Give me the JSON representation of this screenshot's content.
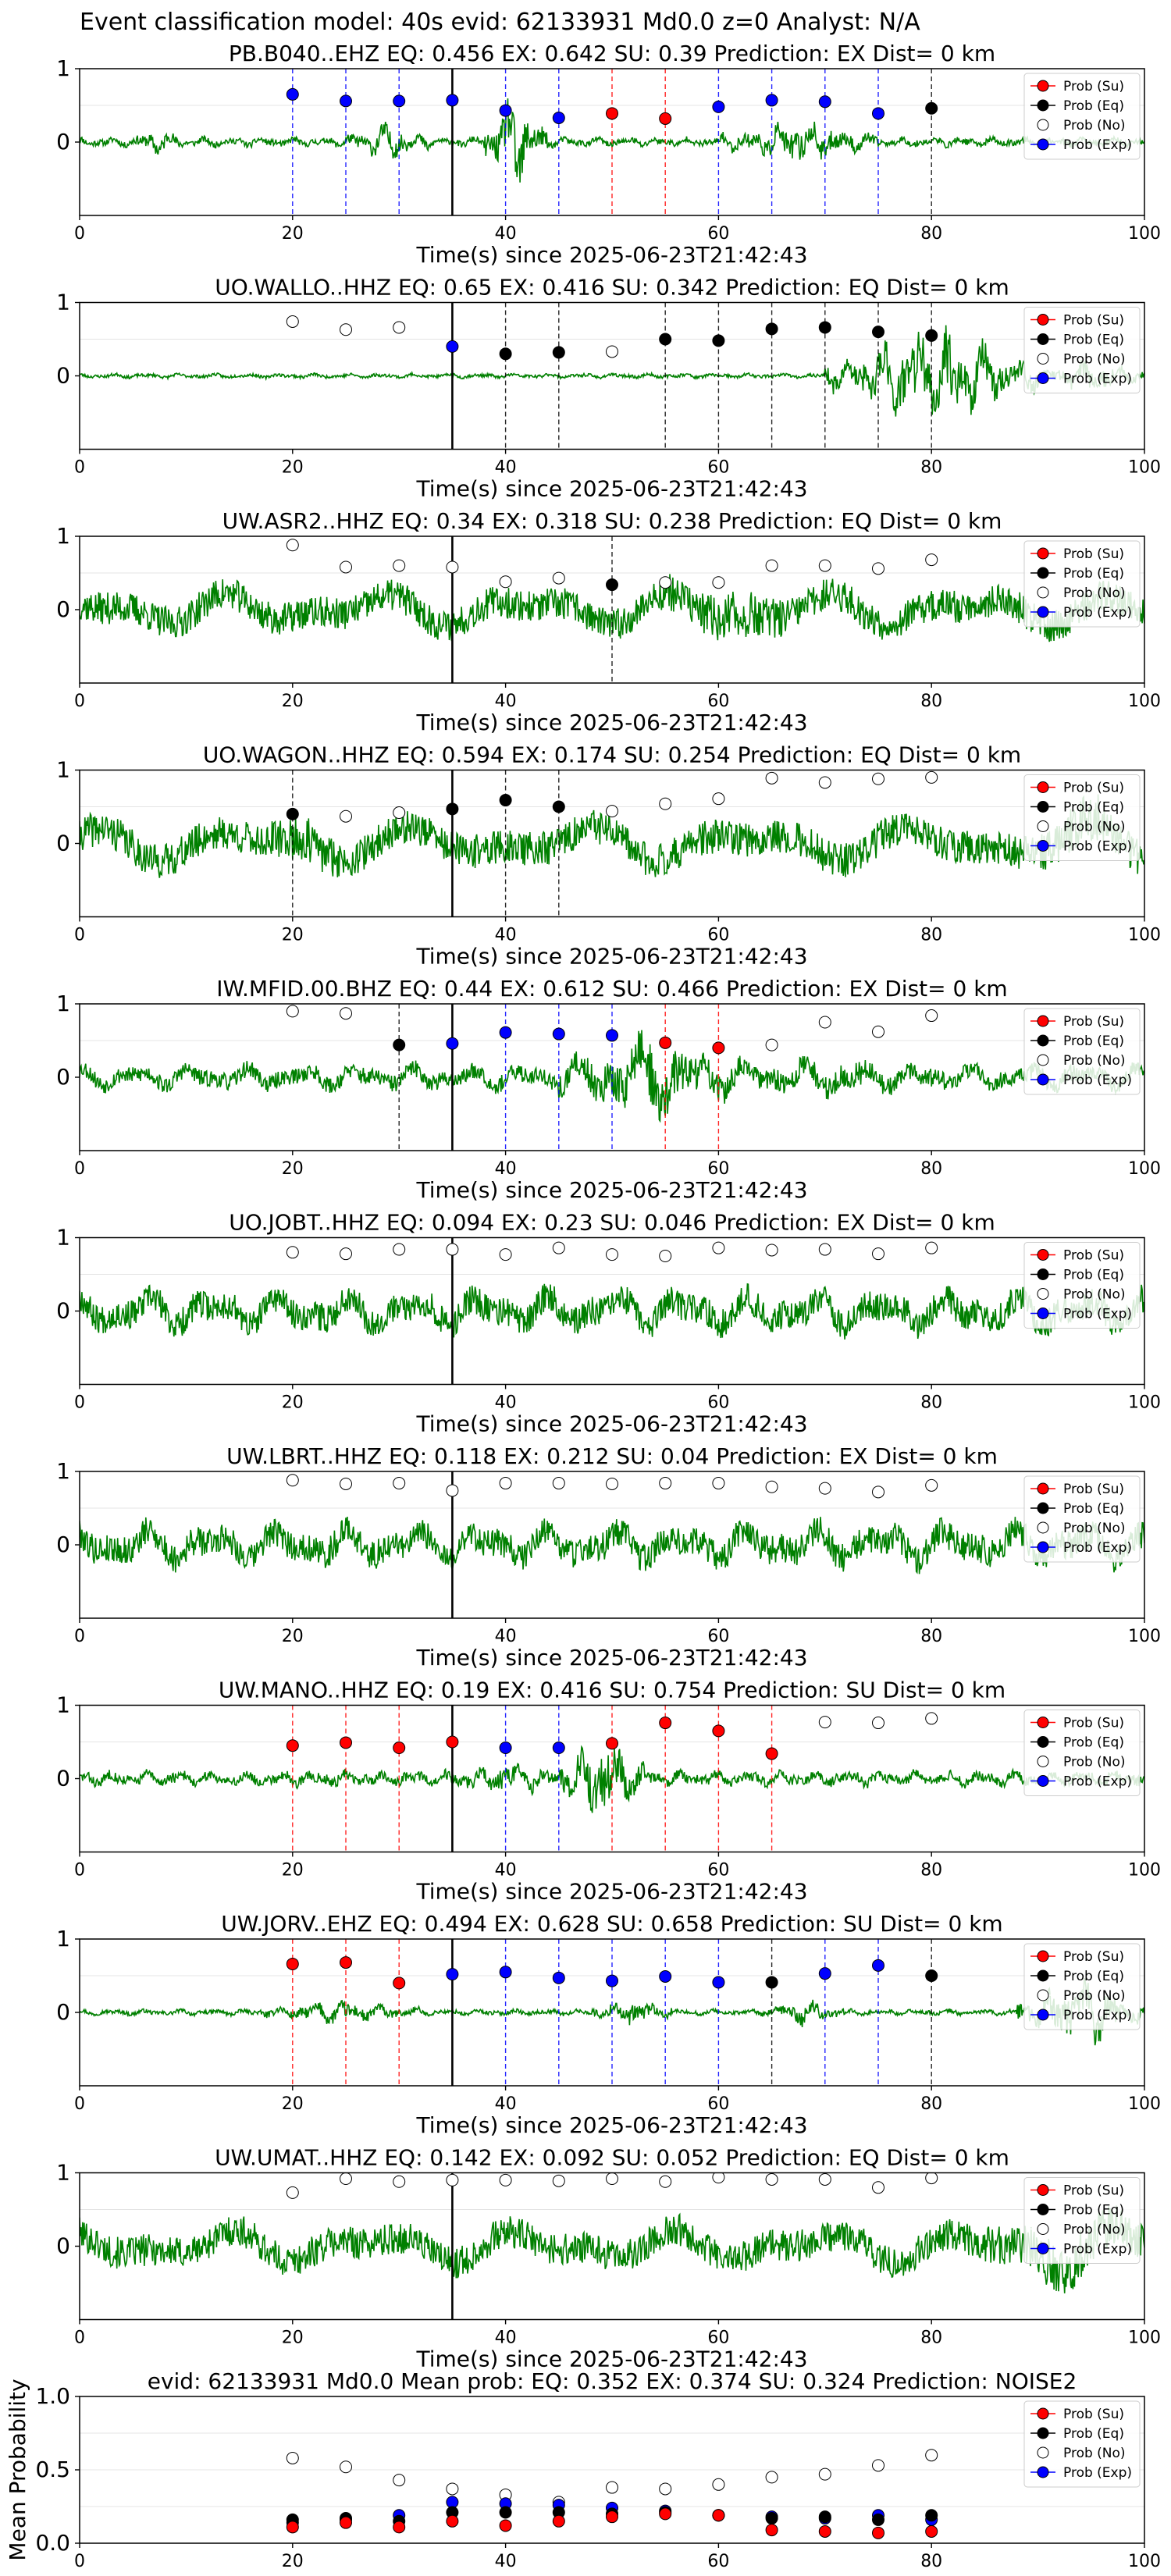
{
  "suptitle": "Event classification model: 40s evid: 62133931 Md0.0 z=0 Analyst: N/A",
  "legend_labels": [
    "Prob (Su)",
    "Prob (Eq)",
    "Prob (No)",
    "Prob (Exp)"
  ],
  "colors": {
    "su": "#ff0000",
    "eq": "#000000",
    "no": "#ffffff",
    "exp": "#0000ff",
    "wave": "#008000"
  },
  "chart_data": [
    {
      "type": "scatter",
      "title": "PB.B040..EHZ   EQ: 0.456  EX: 0.642  SU: 0.39   Prediction: EX    Dist= 0 km",
      "xlabel": "Time(s) since 2025-06-23T21:42:43",
      "ylabel": "",
      "xlim": [
        0,
        100
      ],
      "ylim": [
        -1,
        1
      ],
      "x_ticks": [
        0,
        20,
        40,
        60,
        80,
        100
      ],
      "y_ticks": [
        0,
        1
      ],
      "pick_time": 35,
      "waveform": {
        "amp": 0.08,
        "freq": 2.2,
        "seed": 11,
        "bursts": [
          [
            38,
            44,
            0.75
          ],
          [
            25,
            33,
            0.22
          ],
          [
            60,
            75,
            0.28
          ],
          [
            5,
            10,
            0.15
          ]
        ]
      },
      "x": [
        20,
        25,
        30,
        35,
        40,
        45,
        50,
        55,
        60,
        65,
        70,
        75,
        80
      ],
      "class": [
        "exp",
        "exp",
        "exp",
        "exp",
        "exp",
        "exp",
        "su",
        "su",
        "exp",
        "exp",
        "exp",
        "exp",
        "eq"
      ],
      "prob": [
        0.65,
        0.56,
        0.56,
        0.57,
        0.43,
        0.33,
        0.39,
        0.32,
        0.48,
        0.57,
        0.55,
        0.39,
        0.46
      ]
    },
    {
      "type": "scatter",
      "title": "UO.WALLO..HHZ   EQ: 0.65  EX: 0.416  SU: 0.342   Prediction: EQ    Dist= 0 km",
      "xlabel": "Time(s) since 2025-06-23T21:42:43",
      "ylabel": "",
      "xlim": [
        0,
        100
      ],
      "ylim": [
        -1,
        1
      ],
      "x_ticks": [
        0,
        20,
        40,
        60,
        80,
        100
      ],
      "y_ticks": [
        0,
        1
      ],
      "pick_time": 35,
      "waveform": {
        "amp": 0.04,
        "freq": 2.0,
        "seed": 23,
        "bursts": [
          [
            70,
            90,
            0.9
          ],
          [
            90,
            100,
            0.25
          ]
        ]
      },
      "x": [
        20,
        25,
        30,
        35,
        40,
        45,
        50,
        55,
        60,
        65,
        70,
        75,
        80
      ],
      "class": [
        "no",
        "no",
        "no",
        "exp",
        "eq",
        "eq",
        "no",
        "eq",
        "eq",
        "eq",
        "eq",
        "eq",
        "eq"
      ],
      "prob": [
        0.74,
        0.63,
        0.66,
        0.4,
        0.3,
        0.32,
        0.33,
        0.5,
        0.48,
        0.64,
        0.66,
        0.6,
        0.55
      ]
    },
    {
      "type": "scatter",
      "title": "UW.ASR2..HHZ   EQ: 0.34  EX: 0.318  SU: 0.238   Prediction: EQ    Dist= 0 km",
      "xlabel": "Time(s) since 2025-06-23T21:42:43",
      "ylabel": "",
      "xlim": [
        0,
        100
      ],
      "ylim": [
        -1,
        1
      ],
      "x_ticks": [
        0,
        20,
        40,
        60,
        80,
        100
      ],
      "y_ticks": [
        0,
        1
      ],
      "pick_time": 35,
      "waveform": {
        "amp": 0.42,
        "freq": 0.45,
        "seed": 37,
        "bursts": [
          [
            55,
            68,
            0.25
          ]
        ]
      },
      "x": [
        20,
        25,
        30,
        35,
        40,
        45,
        50,
        55,
        60,
        65,
        70,
        75,
        80
      ],
      "class": [
        "no",
        "no",
        "no",
        "no",
        "no",
        "no",
        "eq",
        "no",
        "no",
        "no",
        "no",
        "no",
        "no"
      ],
      "prob": [
        0.88,
        0.58,
        0.6,
        0.58,
        0.38,
        0.43,
        0.34,
        0.37,
        0.37,
        0.6,
        0.6,
        0.56,
        0.68
      ]
    },
    {
      "type": "scatter",
      "title": "UO.WAGON..HHZ   EQ: 0.594  EX: 0.174  SU: 0.254   Prediction: EQ    Dist= 0 km",
      "xlabel": "Time(s) since 2025-06-23T21:42:43",
      "ylabel": "",
      "xlim": [
        0,
        100
      ],
      "ylim": [
        -1,
        1
      ],
      "x_ticks": [
        0,
        20,
        40,
        60,
        80,
        100
      ],
      "y_ticks": [
        0,
        1
      ],
      "pick_time": 35,
      "waveform": {
        "amp": 0.45,
        "freq": 0.4,
        "seed": 41,
        "bursts": [
          [
            18,
            25,
            0.2
          ],
          [
            90,
            100,
            0.25
          ]
        ]
      },
      "x": [
        20,
        25,
        30,
        35,
        40,
        45,
        50,
        55,
        60,
        65,
        70,
        75,
        80
      ],
      "class": [
        "eq",
        "no",
        "no",
        "eq",
        "eq",
        "eq",
        "no",
        "no",
        "no",
        "no",
        "no",
        "no",
        "no"
      ],
      "prob": [
        0.4,
        0.37,
        0.42,
        0.47,
        0.59,
        0.5,
        0.44,
        0.54,
        0.61,
        0.89,
        0.83,
        0.88,
        0.9
      ]
    },
    {
      "type": "scatter",
      "title": "IW.MFID.00.BHZ   EQ: 0.44  EX: 0.612  SU: 0.466   Prediction: EX    Dist= 0 km",
      "xlabel": "Time(s) since 2025-06-23T21:42:43",
      "ylabel": "",
      "xlim": [
        0,
        100
      ],
      "ylim": [
        -1,
        1
      ],
      "x_ticks": [
        0,
        20,
        40,
        60,
        80,
        100
      ],
      "y_ticks": [
        0,
        1
      ],
      "pick_time": 35,
      "waveform": {
        "amp": 0.22,
        "freq": 1.2,
        "seed": 53,
        "bursts": [
          [
            45,
            62,
            0.55
          ],
          [
            62,
            80,
            0.15
          ]
        ]
      },
      "x": [
        20,
        25,
        30,
        35,
        40,
        45,
        50,
        55,
        60,
        65,
        70,
        75,
        80
      ],
      "class": [
        "no",
        "no",
        "eq",
        "exp",
        "exp",
        "exp",
        "exp",
        "su",
        "su",
        "no",
        "no",
        "no",
        "no"
      ],
      "prob": [
        0.9,
        0.87,
        0.44,
        0.46,
        0.61,
        0.59,
        0.57,
        0.47,
        0.4,
        0.44,
        0.75,
        0.62,
        0.84
      ]
    },
    {
      "type": "scatter",
      "title": "UO.JOBT..HHZ   EQ: 0.094  EX: 0.23  SU: 0.046   Prediction: EX    Dist= 0 km",
      "xlabel": "Time(s) since 2025-06-23T21:42:43",
      "ylabel": "",
      "xlim": [
        0,
        100
      ],
      "ylim": [
        -1,
        1
      ],
      "x_ticks": [
        0,
        20,
        40,
        60,
        80,
        100
      ],
      "y_ticks": [
        0,
        1
      ],
      "pick_time": 35,
      "waveform": {
        "amp": 0.38,
        "freq": 1.0,
        "seed": 67,
        "bursts": []
      },
      "x": [
        20,
        25,
        30,
        35,
        40,
        45,
        50,
        55,
        60,
        65,
        70,
        75,
        80
      ],
      "class": [
        "no",
        "no",
        "no",
        "no",
        "no",
        "no",
        "no",
        "no",
        "no",
        "no",
        "no",
        "no",
        "no"
      ],
      "prob": [
        0.8,
        0.78,
        0.84,
        0.84,
        0.77,
        0.86,
        0.77,
        0.75,
        0.86,
        0.83,
        0.84,
        0.78,
        0.86
      ]
    },
    {
      "type": "scatter",
      "title": "UW.LBRT..HHZ   EQ: 0.118  EX: 0.212  SU: 0.04   Prediction: EX    Dist= 0 km",
      "xlabel": "Time(s) since 2025-06-23T21:42:43",
      "ylabel": "",
      "xlim": [
        0,
        100
      ],
      "ylim": [
        -1,
        1
      ],
      "x_ticks": [
        0,
        20,
        40,
        60,
        80,
        100
      ],
      "y_ticks": [
        0,
        1
      ],
      "pick_time": 35,
      "waveform": {
        "amp": 0.38,
        "freq": 1.0,
        "seed": 79,
        "bursts": []
      },
      "x": [
        20,
        25,
        30,
        35,
        40,
        45,
        50,
        55,
        60,
        65,
        70,
        75,
        80
      ],
      "class": [
        "no",
        "no",
        "no",
        "no",
        "no",
        "no",
        "no",
        "no",
        "no",
        "no",
        "no",
        "no",
        "no"
      ],
      "prob": [
        0.88,
        0.83,
        0.84,
        0.74,
        0.84,
        0.84,
        0.83,
        0.84,
        0.84,
        0.79,
        0.77,
        0.72,
        0.81
      ]
    },
    {
      "type": "scatter",
      "title": "UW.MANO..HHZ   EQ: 0.19  EX: 0.416  SU: 0.754   Prediction: SU    Dist= 0 km",
      "xlabel": "Time(s) since 2025-06-23T21:42:43",
      "ylabel": "",
      "xlim": [
        0,
        100
      ],
      "ylim": [
        -1,
        1
      ],
      "x_ticks": [
        0,
        20,
        40,
        60,
        80,
        100
      ],
      "y_ticks": [
        0,
        1
      ],
      "pick_time": 35,
      "waveform": {
        "amp": 0.13,
        "freq": 2.0,
        "seed": 83,
        "bursts": [
          [
            45,
            53,
            0.65
          ],
          [
            35,
            45,
            0.15
          ]
        ]
      },
      "x": [
        20,
        25,
        30,
        35,
        40,
        45,
        50,
        55,
        60,
        65,
        70,
        75,
        80
      ],
      "class": [
        "su",
        "su",
        "su",
        "su",
        "exp",
        "exp",
        "su",
        "su",
        "su",
        "su",
        "no",
        "no",
        "no"
      ],
      "prob": [
        0.45,
        0.49,
        0.42,
        0.5,
        0.42,
        0.42,
        0.48,
        0.76,
        0.65,
        0.34,
        0.77,
        0.76,
        0.82
      ]
    },
    {
      "type": "scatter",
      "title": "UW.JORV..EHZ   EQ: 0.494  EX: 0.628  SU: 0.658   Prediction: SU    Dist= 0 km",
      "xlabel": "Time(s) since 2025-06-23T21:42:43",
      "ylabel": "",
      "xlim": [
        0,
        100
      ],
      "ylim": [
        -1,
        1
      ],
      "x_ticks": [
        0,
        20,
        40,
        60,
        80,
        100
      ],
      "y_ticks": [
        0,
        1
      ],
      "pick_time": 35,
      "waveform": {
        "amp": 0.05,
        "freq": 2.0,
        "seed": 97,
        "bursts": [
          [
            17,
            32,
            0.15
          ],
          [
            48,
            56,
            0.2
          ],
          [
            64,
            72,
            0.17
          ],
          [
            88,
            100,
            0.6
          ]
        ]
      },
      "x": [
        20,
        25,
        30,
        35,
        40,
        45,
        50,
        55,
        60,
        65,
        70,
        75,
        80
      ],
      "class": [
        "su",
        "su",
        "su",
        "exp",
        "exp",
        "exp",
        "exp",
        "exp",
        "exp",
        "eq",
        "exp",
        "exp",
        "eq"
      ],
      "prob": [
        0.66,
        0.68,
        0.4,
        0.52,
        0.55,
        0.47,
        0.43,
        0.49,
        0.41,
        0.41,
        0.53,
        0.64,
        0.5
      ]
    },
    {
      "type": "scatter",
      "title": "UW.UMAT..HHZ   EQ: 0.142  EX: 0.092  SU: 0.052   Prediction: EQ    Dist= 0 km",
      "xlabel": "Time(s) since 2025-06-23T21:42:43",
      "ylabel": "",
      "xlim": [
        0,
        100
      ],
      "ylim": [
        -1,
        1
      ],
      "x_ticks": [
        0,
        20,
        40,
        60,
        80,
        100
      ],
      "y_ticks": [
        0,
        1
      ],
      "pick_time": 35,
      "waveform": {
        "amp": 0.42,
        "freq": 0.45,
        "seed": 101,
        "bursts": [
          [
            85,
            100,
            0.3
          ]
        ]
      },
      "x": [
        20,
        25,
        30,
        35,
        40,
        45,
        50,
        55,
        60,
        65,
        70,
        75,
        80
      ],
      "class": [
        "no",
        "no",
        "no",
        "no",
        "no",
        "no",
        "no",
        "no",
        "no",
        "no",
        "no",
        "no",
        "no"
      ],
      "prob": [
        0.73,
        0.92,
        0.88,
        0.9,
        0.9,
        0.89,
        0.92,
        0.88,
        0.94,
        0.91,
        0.91,
        0.8,
        0.93
      ]
    },
    {
      "type": "scatter",
      "title": "evid: 62133931  Md0.0   Mean prob:   EQ: 0.352  EX: 0.374  SU: 0.324   Prediction: NOISE2",
      "xlabel": "",
      "ylabel": "Mean Probability",
      "xlim": [
        0,
        100
      ],
      "ylim": [
        0,
        1
      ],
      "x_ticks": [
        0,
        20,
        40,
        60,
        80,
        100
      ],
      "y_ticks": [
        0.0,
        0.5,
        1.0
      ],
      "x": [
        20,
        25,
        30,
        35,
        40,
        45,
        50,
        55,
        60,
        65,
        70,
        75,
        80
      ],
      "series": [
        {
          "name": "Prob (No)",
          "key": "no",
          "values": [
            0.58,
            0.52,
            0.43,
            0.37,
            0.33,
            0.28,
            0.38,
            0.37,
            0.4,
            0.45,
            0.47,
            0.53,
            0.6
          ]
        },
        {
          "name": "Prob (Exp)",
          "key": "exp",
          "values": [
            0.14,
            0.16,
            0.19,
            0.28,
            0.27,
            0.26,
            0.24,
            0.22,
            0.19,
            0.18,
            0.17,
            0.19,
            0.16
          ]
        },
        {
          "name": "Prob (Eq)",
          "key": "eq",
          "values": [
            0.16,
            0.17,
            0.15,
            0.21,
            0.21,
            0.21,
            0.2,
            0.21,
            0.19,
            0.17,
            0.18,
            0.16,
            0.19
          ]
        },
        {
          "name": "Prob (Su)",
          "key": "su",
          "values": [
            0.11,
            0.14,
            0.11,
            0.15,
            0.12,
            0.15,
            0.18,
            0.2,
            0.19,
            0.09,
            0.08,
            0.07,
            0.08
          ]
        }
      ]
    }
  ]
}
